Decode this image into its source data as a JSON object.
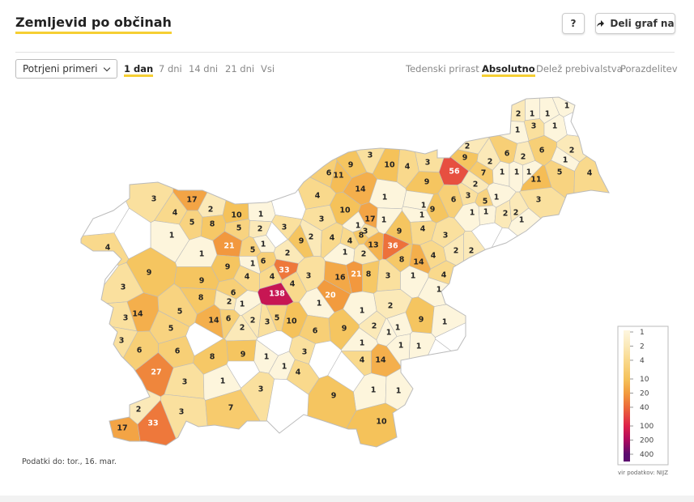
{
  "header": {
    "title": "Zemljevid po občinah",
    "help": "?",
    "share": "Deli graf na"
  },
  "controls": {
    "select": "Potrjeni primeri",
    "periods": [
      {
        "label": "1 dan",
        "active": true
      },
      {
        "label": "7 dni",
        "active": false
      },
      {
        "label": "14 dni",
        "active": false
      },
      {
        "label": "21 dni",
        "active": false
      },
      {
        "label": "Vsi",
        "active": false
      }
    ],
    "modes": [
      {
        "label": "Tedenski prirast",
        "active": false
      },
      {
        "label": "Absolutno",
        "active": true
      },
      {
        "label": "Delež prebivalstva",
        "active": false
      },
      {
        "label": "Porazdelitev",
        "active": false
      }
    ]
  },
  "map": {
    "values": [
      1,
      2,
      1,
      1,
      1,
      3,
      1,
      2,
      9,
      6,
      2,
      6,
      2,
      1,
      4,
      56,
      7,
      2,
      1,
      1,
      1,
      11,
      5,
      2,
      9,
      3,
      3,
      9,
      6,
      11,
      10,
      4,
      14,
      4,
      1,
      6,
      3,
      5,
      1,
      3,
      1,
      17,
      3,
      2,
      4,
      5,
      8,
      10,
      1,
      3,
      10,
      17,
      1,
      9,
      1,
      1,
      1,
      1,
      2,
      2,
      1,
      5,
      2,
      3,
      1,
      3,
      8,
      4,
      3,
      9,
      21,
      5,
      1,
      9,
      2,
      4,
      4,
      13,
      36,
      2,
      2,
      4,
      1,
      6,
      1,
      2,
      1,
      2,
      8,
      14,
      4,
      9,
      9,
      33,
      4,
      3,
      16,
      21,
      8,
      3,
      1,
      4,
      3,
      4,
      4,
      9,
      138,
      20,
      1,
      8,
      6,
      14,
      5,
      2,
      1,
      1,
      1,
      2,
      9,
      1,
      3,
      14,
      6,
      2,
      2,
      3,
      5,
      10,
      9,
      6,
      2,
      1,
      1,
      5,
      3,
      1,
      1,
      1,
      9,
      6,
      6,
      3,
      1,
      4,
      14,
      8,
      1,
      4,
      27,
      3,
      1,
      3,
      1,
      1,
      9,
      2,
      3,
      7,
      17,
      33,
      10
    ]
  },
  "legend": {
    "ticks": [
      1,
      2,
      4,
      10,
      20,
      40,
      100,
      200,
      400
    ],
    "colors": [
      "#fdf5dc",
      "#fbe9b8",
      "#f9d98c",
      "#f5c25a",
      "#f29b3e",
      "#ec6a3a",
      "#de2149",
      "#ad0a5f",
      "#5b0c6e"
    ]
  },
  "footer": {
    "date": "Podatki do: tor., 16. mar.",
    "source": "vir podatkov: NIJZ"
  }
}
